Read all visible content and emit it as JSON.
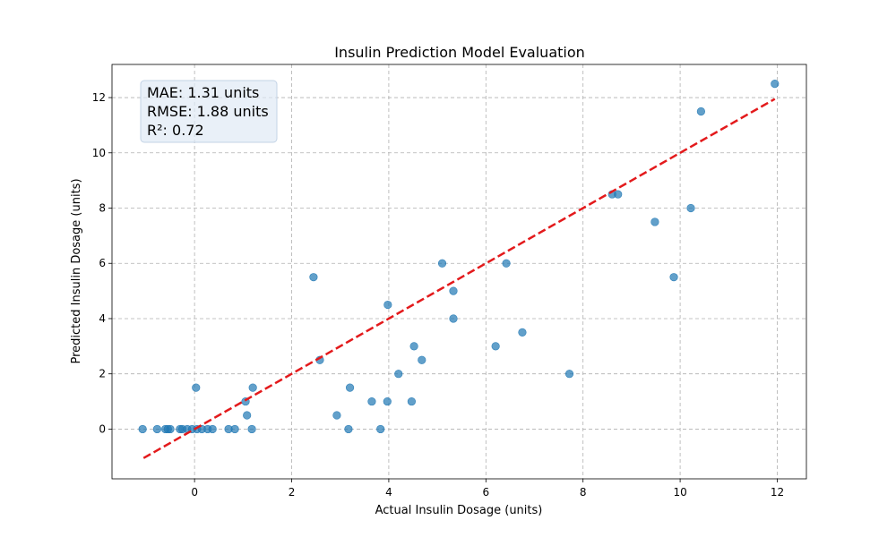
{
  "chart_data": {
    "type": "scatter",
    "title": "Insulin Prediction Model Evaluation",
    "xlabel": "Actual Insulin Dosage (units)",
    "ylabel": "Predicted Insulin Dosage (units)",
    "xlim": [
      -1.7,
      12.6
    ],
    "ylim": [
      -1.8,
      13.2
    ],
    "xticks": [
      0,
      2,
      4,
      6,
      8,
      10,
      12
    ],
    "yticks": [
      0,
      2,
      4,
      6,
      8,
      10,
      12
    ],
    "grid": true,
    "reference_line": {
      "x": [
        -1.05,
        11.95
      ],
      "y": [
        -1.05,
        11.95
      ],
      "color": "#e31a1c",
      "style": "dashed"
    },
    "point_color": "#1f77b4",
    "stats": {
      "mae": "MAE: 1.31 units",
      "rmse": "RMSE: 1.88 units",
      "r2": "R²: 0.72"
    },
    "points": [
      [
        -1.07,
        0.0
      ],
      [
        -0.77,
        0.0
      ],
      [
        -0.6,
        0.0
      ],
      [
        -0.55,
        0.0
      ],
      [
        -0.5,
        0.0
      ],
      [
        -0.3,
        0.0
      ],
      [
        -0.25,
        0.0
      ],
      [
        -0.15,
        0.0
      ],
      [
        -0.05,
        0.0
      ],
      [
        0.05,
        0.0
      ],
      [
        0.15,
        0.0
      ],
      [
        0.27,
        0.0
      ],
      [
        0.37,
        0.0
      ],
      [
        0.7,
        0.0
      ],
      [
        0.83,
        0.0
      ],
      [
        1.18,
        0.0
      ],
      [
        3.17,
        0.0
      ],
      [
        3.83,
        0.0
      ],
      [
        0.03,
        1.5
      ],
      [
        1.2,
        1.5
      ],
      [
        1.05,
        1.0
      ],
      [
        1.08,
        0.5
      ],
      [
        2.45,
        5.5
      ],
      [
        2.58,
        2.5
      ],
      [
        2.93,
        0.5
      ],
      [
        3.2,
        1.5
      ],
      [
        3.65,
        1.0
      ],
      [
        3.97,
        1.0
      ],
      [
        3.98,
        4.5
      ],
      [
        4.2,
        2.0
      ],
      [
        4.47,
        1.0
      ],
      [
        4.52,
        3.0
      ],
      [
        4.68,
        2.5
      ],
      [
        5.1,
        6.0
      ],
      [
        5.33,
        5.0
      ],
      [
        5.33,
        4.0
      ],
      [
        6.2,
        3.0
      ],
      [
        6.42,
        6.0
      ],
      [
        6.75,
        3.5
      ],
      [
        7.72,
        2.0
      ],
      [
        8.6,
        8.5
      ],
      [
        8.72,
        8.5
      ],
      [
        9.48,
        7.5
      ],
      [
        9.87,
        5.5
      ],
      [
        10.22,
        8.0
      ],
      [
        10.43,
        11.5
      ],
      [
        11.95,
        12.5
      ]
    ]
  }
}
